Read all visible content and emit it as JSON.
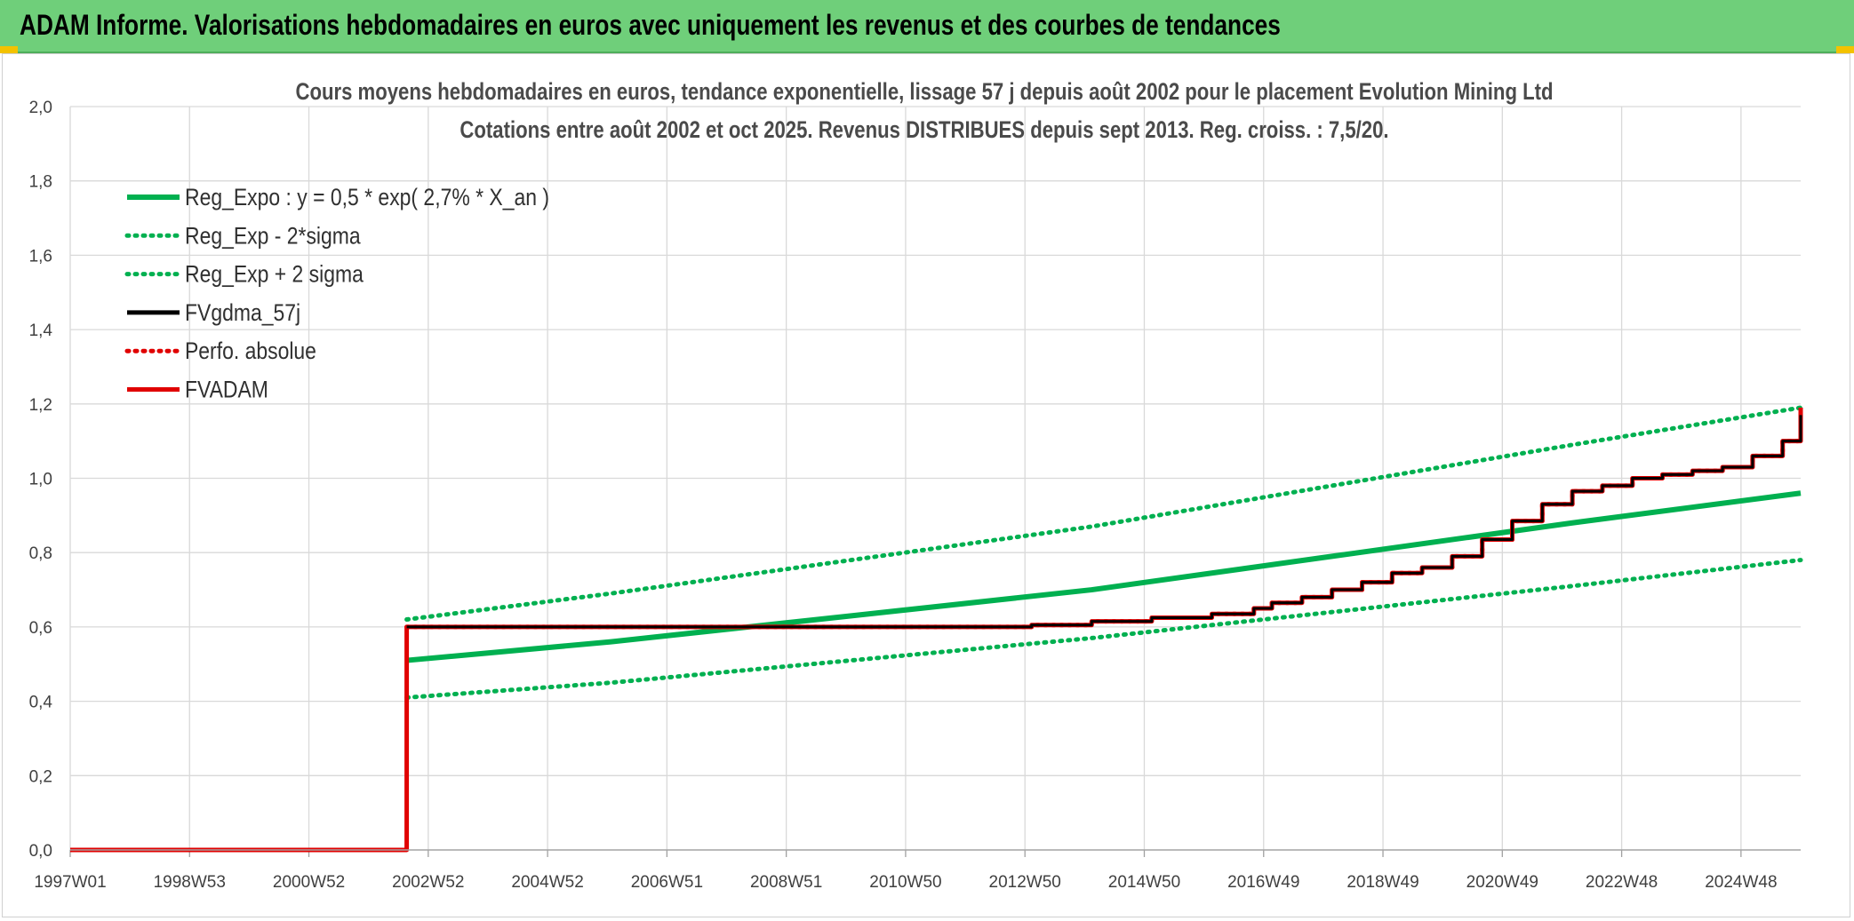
{
  "header": {
    "title": "ADAM Informe. Valorisations hebdomadaires en euros avec uniquement les revenus et des courbes de tendances"
  },
  "colors": {
    "banner": "#6fcf7a",
    "trend_green": "#00b050",
    "black": "#000000",
    "red": "#e00000",
    "accent_yellow": "#f3c200"
  },
  "chart_data": {
    "type": "line",
    "title": "Cours moyens hebdomadaires en euros, tendance exponentielle, lissage 57 j depuis août 2002 pour le placement Evolution Mining Ltd",
    "subtitle": "Cotations entre août 2002 et oct 2025. Revenus DISTRIBUES depuis sept 2013. Reg. croiss. : 7,5/20.",
    "xlabel": "",
    "ylabel": "",
    "x_ticks": [
      "1997W01",
      "1998W53",
      "2000W52",
      "2002W52",
      "2004W52",
      "2006W51",
      "2008W51",
      "2010W50",
      "2012W50",
      "2014W50",
      "2016W49",
      "2018W49",
      "2020W49",
      "2022W48",
      "2024W48"
    ],
    "xlim": [
      1997.0,
      2025.8
    ],
    "ylim": [
      0,
      2
    ],
    "y_ticks": [
      "0,0",
      "0,2",
      "0,4",
      "0,6",
      "0,8",
      "1,0",
      "1,2",
      "1,4",
      "1,6",
      "1,8",
      "2,0"
    ],
    "grid": true,
    "legend_position": "top-left",
    "series": [
      {
        "name": "Reg_Expo : y = 0,5 * exp( 2,7% *  X_an )",
        "color": "#00b050",
        "style": "solid",
        "x": [
          2002.6,
          2006.0,
          2010.0,
          2014.0,
          2018.0,
          2022.0,
          2025.8
        ],
        "y": [
          0.51,
          0.56,
          0.63,
          0.7,
          0.79,
          0.88,
          0.96
        ]
      },
      {
        "name": "Reg_Exp - 2*sigma",
        "color": "#00b050",
        "style": "dotted",
        "x": [
          2002.6,
          2006.0,
          2010.0,
          2014.0,
          2018.0,
          2022.0,
          2025.8
        ],
        "y": [
          0.41,
          0.45,
          0.51,
          0.57,
          0.64,
          0.71,
          0.78
        ]
      },
      {
        "name": "Reg_Exp + 2 sigma",
        "color": "#00b050",
        "style": "dotted",
        "x": [
          2002.6,
          2006.0,
          2010.0,
          2014.0,
          2018.0,
          2022.0,
          2025.8
        ],
        "y": [
          0.62,
          0.69,
          0.78,
          0.87,
          0.98,
          1.09,
          1.19
        ]
      },
      {
        "name": "FVgdma_57j",
        "color": "#000000",
        "style": "solid",
        "x": [
          2002.6,
          2012.6,
          2013.0,
          2014.0,
          2015.0,
          2016.0,
          2016.7,
          2017.0,
          2017.5,
          2018.0,
          2018.5,
          2019.0,
          2019.5,
          2020.0,
          2020.5,
          2021.0,
          2021.5,
          2022.0,
          2022.5,
          2023.0,
          2023.5,
          2024.0,
          2024.5,
          2025.0,
          2025.5,
          2025.8
        ],
        "y": [
          0.6,
          0.6,
          0.605,
          0.615,
          0.625,
          0.635,
          0.65,
          0.665,
          0.68,
          0.7,
          0.72,
          0.745,
          0.76,
          0.79,
          0.835,
          0.885,
          0.93,
          0.965,
          0.98,
          1.0,
          1.01,
          1.02,
          1.03,
          1.06,
          1.1,
          1.17
        ]
      },
      {
        "name": "Perfo. absolue",
        "color": "#e00000",
        "style": "dotted",
        "x": [
          2002.6,
          2012.6,
          2013.0,
          2014.0,
          2015.0,
          2016.0,
          2016.7,
          2017.0,
          2017.5,
          2018.0,
          2018.5,
          2019.0,
          2019.5,
          2020.0,
          2020.5,
          2021.0,
          2021.5,
          2022.0,
          2022.5,
          2023.0,
          2023.5,
          2024.0,
          2024.5,
          2025.0,
          2025.5,
          2025.8
        ],
        "y": [
          0.6,
          0.6,
          0.605,
          0.615,
          0.625,
          0.635,
          0.65,
          0.665,
          0.68,
          0.7,
          0.72,
          0.745,
          0.76,
          0.79,
          0.835,
          0.885,
          0.93,
          0.965,
          0.98,
          1.0,
          1.01,
          1.02,
          1.03,
          1.06,
          1.1,
          1.18
        ]
      },
      {
        "name": "FVADAM",
        "color": "#e00000",
        "style": "step",
        "x": [
          1997.0,
          2002.6,
          2002.6,
          2012.6,
          2013.0,
          2014.0,
          2015.0,
          2016.0,
          2016.7,
          2017.0,
          2017.5,
          2018.0,
          2018.5,
          2019.0,
          2019.5,
          2020.0,
          2020.5,
          2021.0,
          2021.5,
          2022.0,
          2022.5,
          2023.0,
          2023.5,
          2024.0,
          2024.5,
          2025.0,
          2025.5,
          2025.8
        ],
        "y": [
          0.0,
          0.0,
          0.6,
          0.6,
          0.605,
          0.615,
          0.625,
          0.635,
          0.65,
          0.665,
          0.68,
          0.7,
          0.72,
          0.745,
          0.76,
          0.79,
          0.835,
          0.885,
          0.93,
          0.965,
          0.98,
          1.0,
          1.01,
          1.02,
          1.03,
          1.06,
          1.1,
          1.19
        ]
      }
    ]
  }
}
